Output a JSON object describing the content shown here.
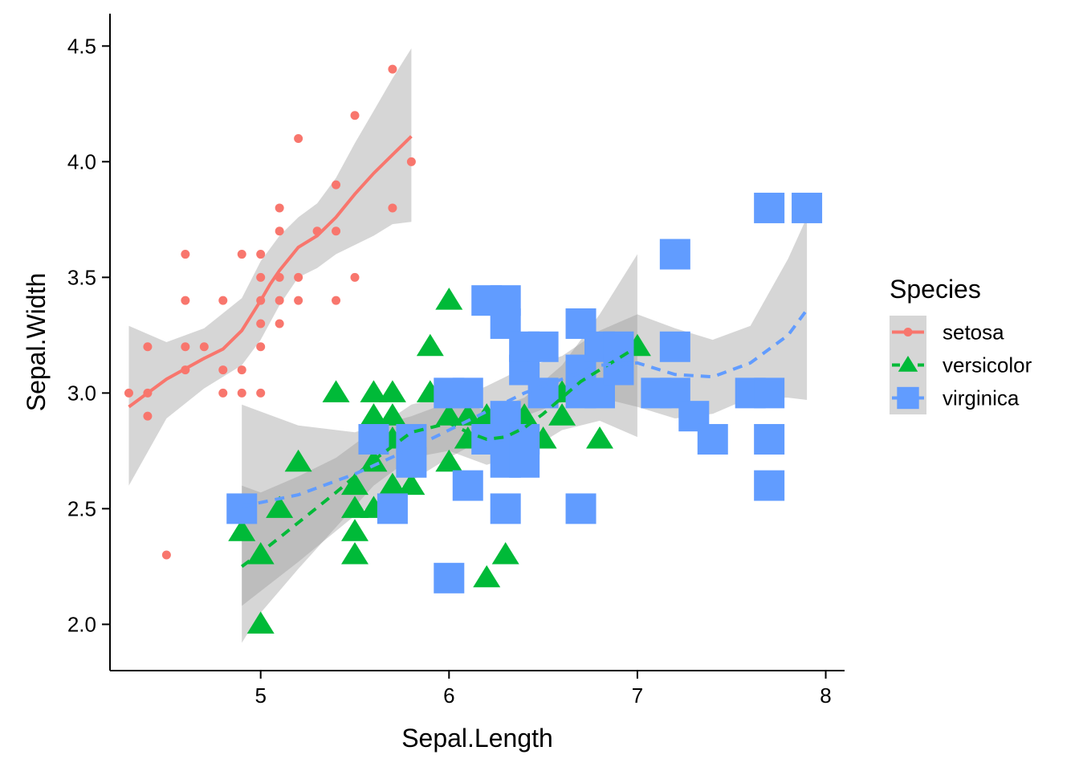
{
  "chart_data": {
    "type": "scatter",
    "xlabel": "Sepal.Length",
    "ylabel": "Sepal.Width",
    "xlim": [
      4.2,
      8.1
    ],
    "ylim": [
      1.8,
      4.64
    ],
    "x_ticks": [
      5,
      6,
      7,
      8
    ],
    "y_ticks": [
      2.0,
      2.5,
      3.0,
      3.5,
      4.0,
      4.5
    ],
    "x_tick_labels": [
      "5",
      "6",
      "7",
      "8"
    ],
    "y_tick_labels": [
      "2.0",
      "2.5",
      "3.0",
      "3.5",
      "4.0",
      "4.5"
    ],
    "grid": false,
    "legend": {
      "title": "Species",
      "placement": "right"
    },
    "smoothing": "loess with confidence band",
    "series": [
      {
        "name": "setosa",
        "color": "#F8766D",
        "shape": "circle",
        "line_style": "solid",
        "points": [
          [
            4.3,
            3.0
          ],
          [
            4.4,
            2.9
          ],
          [
            4.4,
            3.0
          ],
          [
            4.4,
            3.2
          ],
          [
            4.5,
            2.3
          ],
          [
            4.6,
            3.1
          ],
          [
            4.6,
            3.2
          ],
          [
            4.6,
            3.4
          ],
          [
            4.6,
            3.6
          ],
          [
            4.7,
            3.2
          ],
          [
            4.8,
            3.0
          ],
          [
            4.8,
            3.1
          ],
          [
            4.8,
            3.4
          ],
          [
            4.9,
            3.0
          ],
          [
            4.9,
            3.1
          ],
          [
            4.9,
            3.6
          ],
          [
            5.0,
            3.0
          ],
          [
            5.0,
            3.2
          ],
          [
            5.0,
            3.3
          ],
          [
            5.0,
            3.4
          ],
          [
            5.0,
            3.5
          ],
          [
            5.0,
            3.6
          ],
          [
            5.1,
            3.3
          ],
          [
            5.1,
            3.4
          ],
          [
            5.1,
            3.5
          ],
          [
            5.1,
            3.7
          ],
          [
            5.1,
            3.8
          ],
          [
            5.2,
            3.4
          ],
          [
            5.2,
            3.5
          ],
          [
            5.2,
            4.1
          ],
          [
            5.3,
            3.7
          ],
          [
            5.4,
            3.4
          ],
          [
            5.4,
            3.7
          ],
          [
            5.4,
            3.9
          ],
          [
            5.5,
            3.5
          ],
          [
            5.5,
            4.2
          ],
          [
            5.7,
            3.8
          ],
          [
            5.7,
            4.4
          ],
          [
            5.8,
            4.0
          ]
        ],
        "smooth": [
          [
            4.3,
            2.94
          ],
          [
            4.5,
            3.06
          ],
          [
            4.7,
            3.15
          ],
          [
            4.8,
            3.19
          ],
          [
            4.9,
            3.27
          ],
          [
            5.0,
            3.4
          ],
          [
            5.05,
            3.47
          ],
          [
            5.1,
            3.53
          ],
          [
            5.2,
            3.63
          ],
          [
            5.3,
            3.68
          ],
          [
            5.4,
            3.76
          ],
          [
            5.5,
            3.86
          ],
          [
            5.6,
            3.95
          ],
          [
            5.7,
            4.03
          ],
          [
            5.8,
            4.11
          ]
        ],
        "band": [
          [
            4.3,
            2.6,
            3.29
          ],
          [
            4.5,
            2.89,
            3.22
          ],
          [
            4.7,
            3.02,
            3.28
          ],
          [
            4.9,
            3.12,
            3.41
          ],
          [
            5.0,
            3.23,
            3.57
          ],
          [
            5.1,
            3.38,
            3.68
          ],
          [
            5.2,
            3.5,
            3.76
          ],
          [
            5.3,
            3.54,
            3.82
          ],
          [
            5.4,
            3.6,
            3.93
          ],
          [
            5.5,
            3.64,
            4.08
          ],
          [
            5.6,
            3.68,
            4.22
          ],
          [
            5.7,
            3.73,
            4.36
          ],
          [
            5.8,
            3.74,
            4.49
          ]
        ]
      },
      {
        "name": "versicolor",
        "color": "#00BA38",
        "shape": "triangle",
        "line_style": "dashed",
        "points": [
          [
            4.9,
            2.4
          ],
          [
            5.0,
            2.0
          ],
          [
            5.0,
            2.3
          ],
          [
            5.1,
            2.5
          ],
          [
            5.2,
            2.7
          ],
          [
            5.4,
            3.0
          ],
          [
            5.5,
            2.3
          ],
          [
            5.5,
            2.4
          ],
          [
            5.5,
            2.5
          ],
          [
            5.5,
            2.6
          ],
          [
            5.6,
            2.5
          ],
          [
            5.6,
            2.7
          ],
          [
            5.6,
            2.9
          ],
          [
            5.6,
            3.0
          ],
          [
            5.7,
            2.6
          ],
          [
            5.7,
            2.8
          ],
          [
            5.7,
            2.9
          ],
          [
            5.7,
            3.0
          ],
          [
            5.8,
            2.6
          ],
          [
            5.8,
            2.7
          ],
          [
            5.9,
            3.0
          ],
          [
            5.9,
            3.2
          ],
          [
            6.0,
            2.2
          ],
          [
            6.0,
            2.7
          ],
          [
            6.0,
            2.9
          ],
          [
            6.0,
            3.4
          ],
          [
            6.1,
            2.8
          ],
          [
            6.1,
            2.9
          ],
          [
            6.1,
            3.0
          ],
          [
            6.2,
            2.2
          ],
          [
            6.2,
            2.9
          ],
          [
            6.3,
            2.3
          ],
          [
            6.3,
            2.5
          ],
          [
            6.3,
            3.3
          ],
          [
            6.4,
            2.9
          ],
          [
            6.4,
            3.2
          ],
          [
            6.5,
            2.8
          ],
          [
            6.6,
            2.9
          ],
          [
            6.6,
            3.0
          ],
          [
            6.7,
            3.0
          ],
          [
            6.7,
            3.1
          ],
          [
            6.8,
            2.8
          ],
          [
            7.0,
            3.2
          ]
        ],
        "smooth": [
          [
            4.9,
            2.25
          ],
          [
            5.0,
            2.31
          ],
          [
            5.2,
            2.44
          ],
          [
            5.4,
            2.57
          ],
          [
            5.6,
            2.71
          ],
          [
            5.8,
            2.83
          ],
          [
            6.0,
            2.87
          ],
          [
            6.1,
            2.83
          ],
          [
            6.2,
            2.8
          ],
          [
            6.3,
            2.81
          ],
          [
            6.4,
            2.85
          ],
          [
            6.5,
            2.91
          ],
          [
            6.6,
            2.98
          ],
          [
            6.7,
            3.05
          ],
          [
            6.8,
            3.1
          ],
          [
            7.0,
            3.2
          ]
        ],
        "band": [
          [
            4.9,
            1.92,
            2.6
          ],
          [
            5.0,
            2.05,
            2.57
          ],
          [
            5.2,
            2.24,
            2.64
          ],
          [
            5.4,
            2.42,
            2.72
          ],
          [
            5.6,
            2.6,
            2.84
          ],
          [
            5.8,
            2.72,
            2.95
          ],
          [
            6.0,
            2.75,
            2.99
          ],
          [
            6.2,
            2.69,
            2.92
          ],
          [
            6.4,
            2.74,
            2.98
          ],
          [
            6.6,
            2.84,
            3.12
          ],
          [
            6.8,
            2.88,
            3.34
          ],
          [
            7.0,
            2.81,
            3.6
          ]
        ]
      },
      {
        "name": "virginica",
        "color": "#619CFF",
        "shape": "square",
        "line_style": "dashed",
        "points": [
          [
            4.9,
            2.5
          ],
          [
            5.6,
            2.8
          ],
          [
            5.7,
            2.5
          ],
          [
            5.8,
            2.7
          ],
          [
            5.8,
            2.8
          ],
          [
            6.0,
            2.2
          ],
          [
            6.0,
            3.0
          ],
          [
            6.1,
            2.6
          ],
          [
            6.1,
            3.0
          ],
          [
            6.2,
            2.8
          ],
          [
            6.2,
            3.4
          ],
          [
            6.3,
            2.5
          ],
          [
            6.3,
            2.7
          ],
          [
            6.3,
            2.8
          ],
          [
            6.3,
            2.9
          ],
          [
            6.3,
            3.3
          ],
          [
            6.3,
            3.4
          ],
          [
            6.4,
            2.7
          ],
          [
            6.4,
            2.8
          ],
          [
            6.4,
            3.1
          ],
          [
            6.4,
            3.2
          ],
          [
            6.5,
            3.0
          ],
          [
            6.5,
            3.2
          ],
          [
            6.7,
            2.5
          ],
          [
            6.7,
            3.0
          ],
          [
            6.7,
            3.1
          ],
          [
            6.7,
            3.3
          ],
          [
            6.8,
            3.0
          ],
          [
            6.8,
            3.2
          ],
          [
            6.9,
            3.1
          ],
          [
            6.9,
            3.2
          ],
          [
            7.1,
            3.0
          ],
          [
            7.2,
            3.0
          ],
          [
            7.2,
            3.2
          ],
          [
            7.2,
            3.6
          ],
          [
            7.3,
            2.9
          ],
          [
            7.4,
            2.8
          ],
          [
            7.6,
            3.0
          ],
          [
            7.7,
            2.6
          ],
          [
            7.7,
            2.8
          ],
          [
            7.7,
            3.0
          ],
          [
            7.7,
            3.8
          ],
          [
            7.9,
            3.8
          ]
        ],
        "smooth": [
          [
            4.9,
            2.51
          ],
          [
            5.2,
            2.56
          ],
          [
            5.5,
            2.65
          ],
          [
            5.8,
            2.76
          ],
          [
            6.0,
            2.84
          ],
          [
            6.2,
            2.92
          ],
          [
            6.4,
            3.0
          ],
          [
            6.6,
            3.06
          ],
          [
            6.8,
            3.12
          ],
          [
            7.0,
            3.13
          ],
          [
            7.2,
            3.08
          ],
          [
            7.4,
            3.07
          ],
          [
            7.6,
            3.13
          ],
          [
            7.8,
            3.25
          ],
          [
            7.9,
            3.36
          ]
        ],
        "band": [
          [
            4.9,
            2.08,
            2.95
          ],
          [
            5.2,
            2.27,
            2.86
          ],
          [
            5.5,
            2.47,
            2.83
          ],
          [
            5.8,
            2.62,
            2.9
          ],
          [
            6.0,
            2.72,
            2.96
          ],
          [
            6.2,
            2.81,
            3.03
          ],
          [
            6.4,
            2.9,
            3.11
          ],
          [
            6.6,
            2.96,
            3.16
          ],
          [
            6.8,
            2.98,
            3.27
          ],
          [
            7.0,
            2.94,
            3.34
          ],
          [
            7.2,
            2.89,
            3.28
          ],
          [
            7.4,
            2.91,
            3.23
          ],
          [
            7.6,
            2.98,
            3.29
          ],
          [
            7.8,
            2.98,
            3.58
          ],
          [
            7.9,
            2.97,
            3.76
          ]
        ]
      }
    ]
  }
}
